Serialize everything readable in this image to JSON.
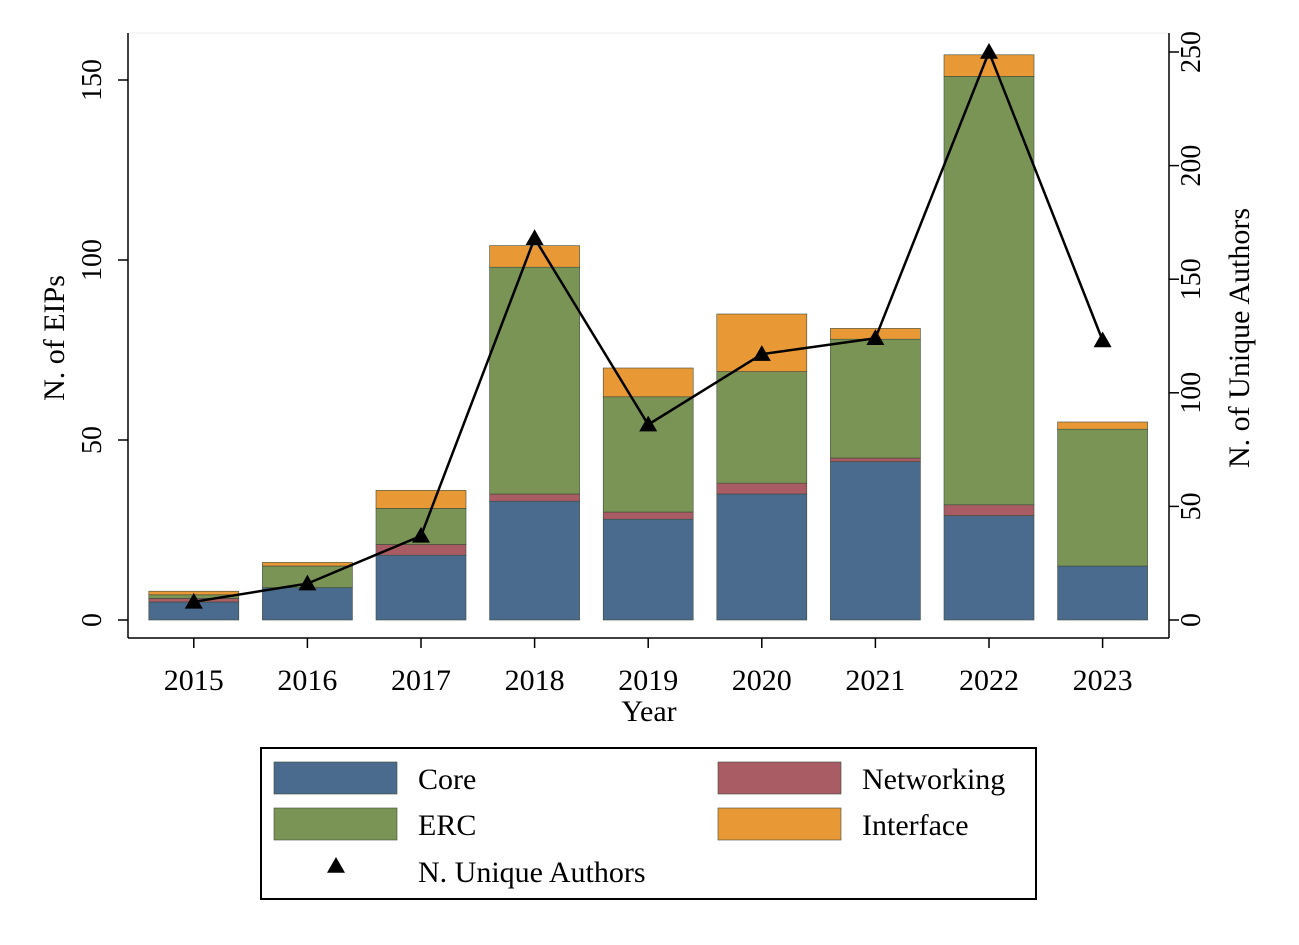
{
  "chart_data": {
    "type": "bar",
    "stacked": true,
    "categories": [
      "2015",
      "2016",
      "2017",
      "2018",
      "2019",
      "2020",
      "2021",
      "2022",
      "2023"
    ],
    "xlabel": "Year",
    "ylabel": "N. of EIPs",
    "y2label": "N. of Unique Authors",
    "ylim": [
      0,
      160
    ],
    "y2lim": [
      0,
      256
    ],
    "yticks": [
      0,
      50,
      100,
      150
    ],
    "y2ticks": [
      0,
      50,
      100,
      150,
      200,
      250
    ],
    "grid": false,
    "legend_position": "bottom",
    "series": [
      {
        "name": "Core",
        "color": "#4a6b8e",
        "values": [
          5,
          9,
          18,
          33,
          28,
          35,
          44,
          29,
          15
        ]
      },
      {
        "name": "Networking",
        "color": "#a95c63",
        "values": [
          1,
          0,
          3,
          2,
          2,
          3,
          1,
          3,
          0
        ]
      },
      {
        "name": "ERC",
        "color": "#7a9455",
        "values": [
          1,
          6,
          10,
          63,
          32,
          31,
          33,
          119,
          38
        ]
      },
      {
        "name": "Interface",
        "color": "#e89935",
        "values": [
          1,
          1,
          5,
          6,
          8,
          16,
          3,
          6,
          2
        ]
      }
    ],
    "line": {
      "name": "N. Unique Authors",
      "axis": "right",
      "color": "#000000",
      "marker": "triangle",
      "values": [
        8,
        16,
        37,
        168,
        86,
        117,
        124,
        250,
        123
      ]
    }
  }
}
